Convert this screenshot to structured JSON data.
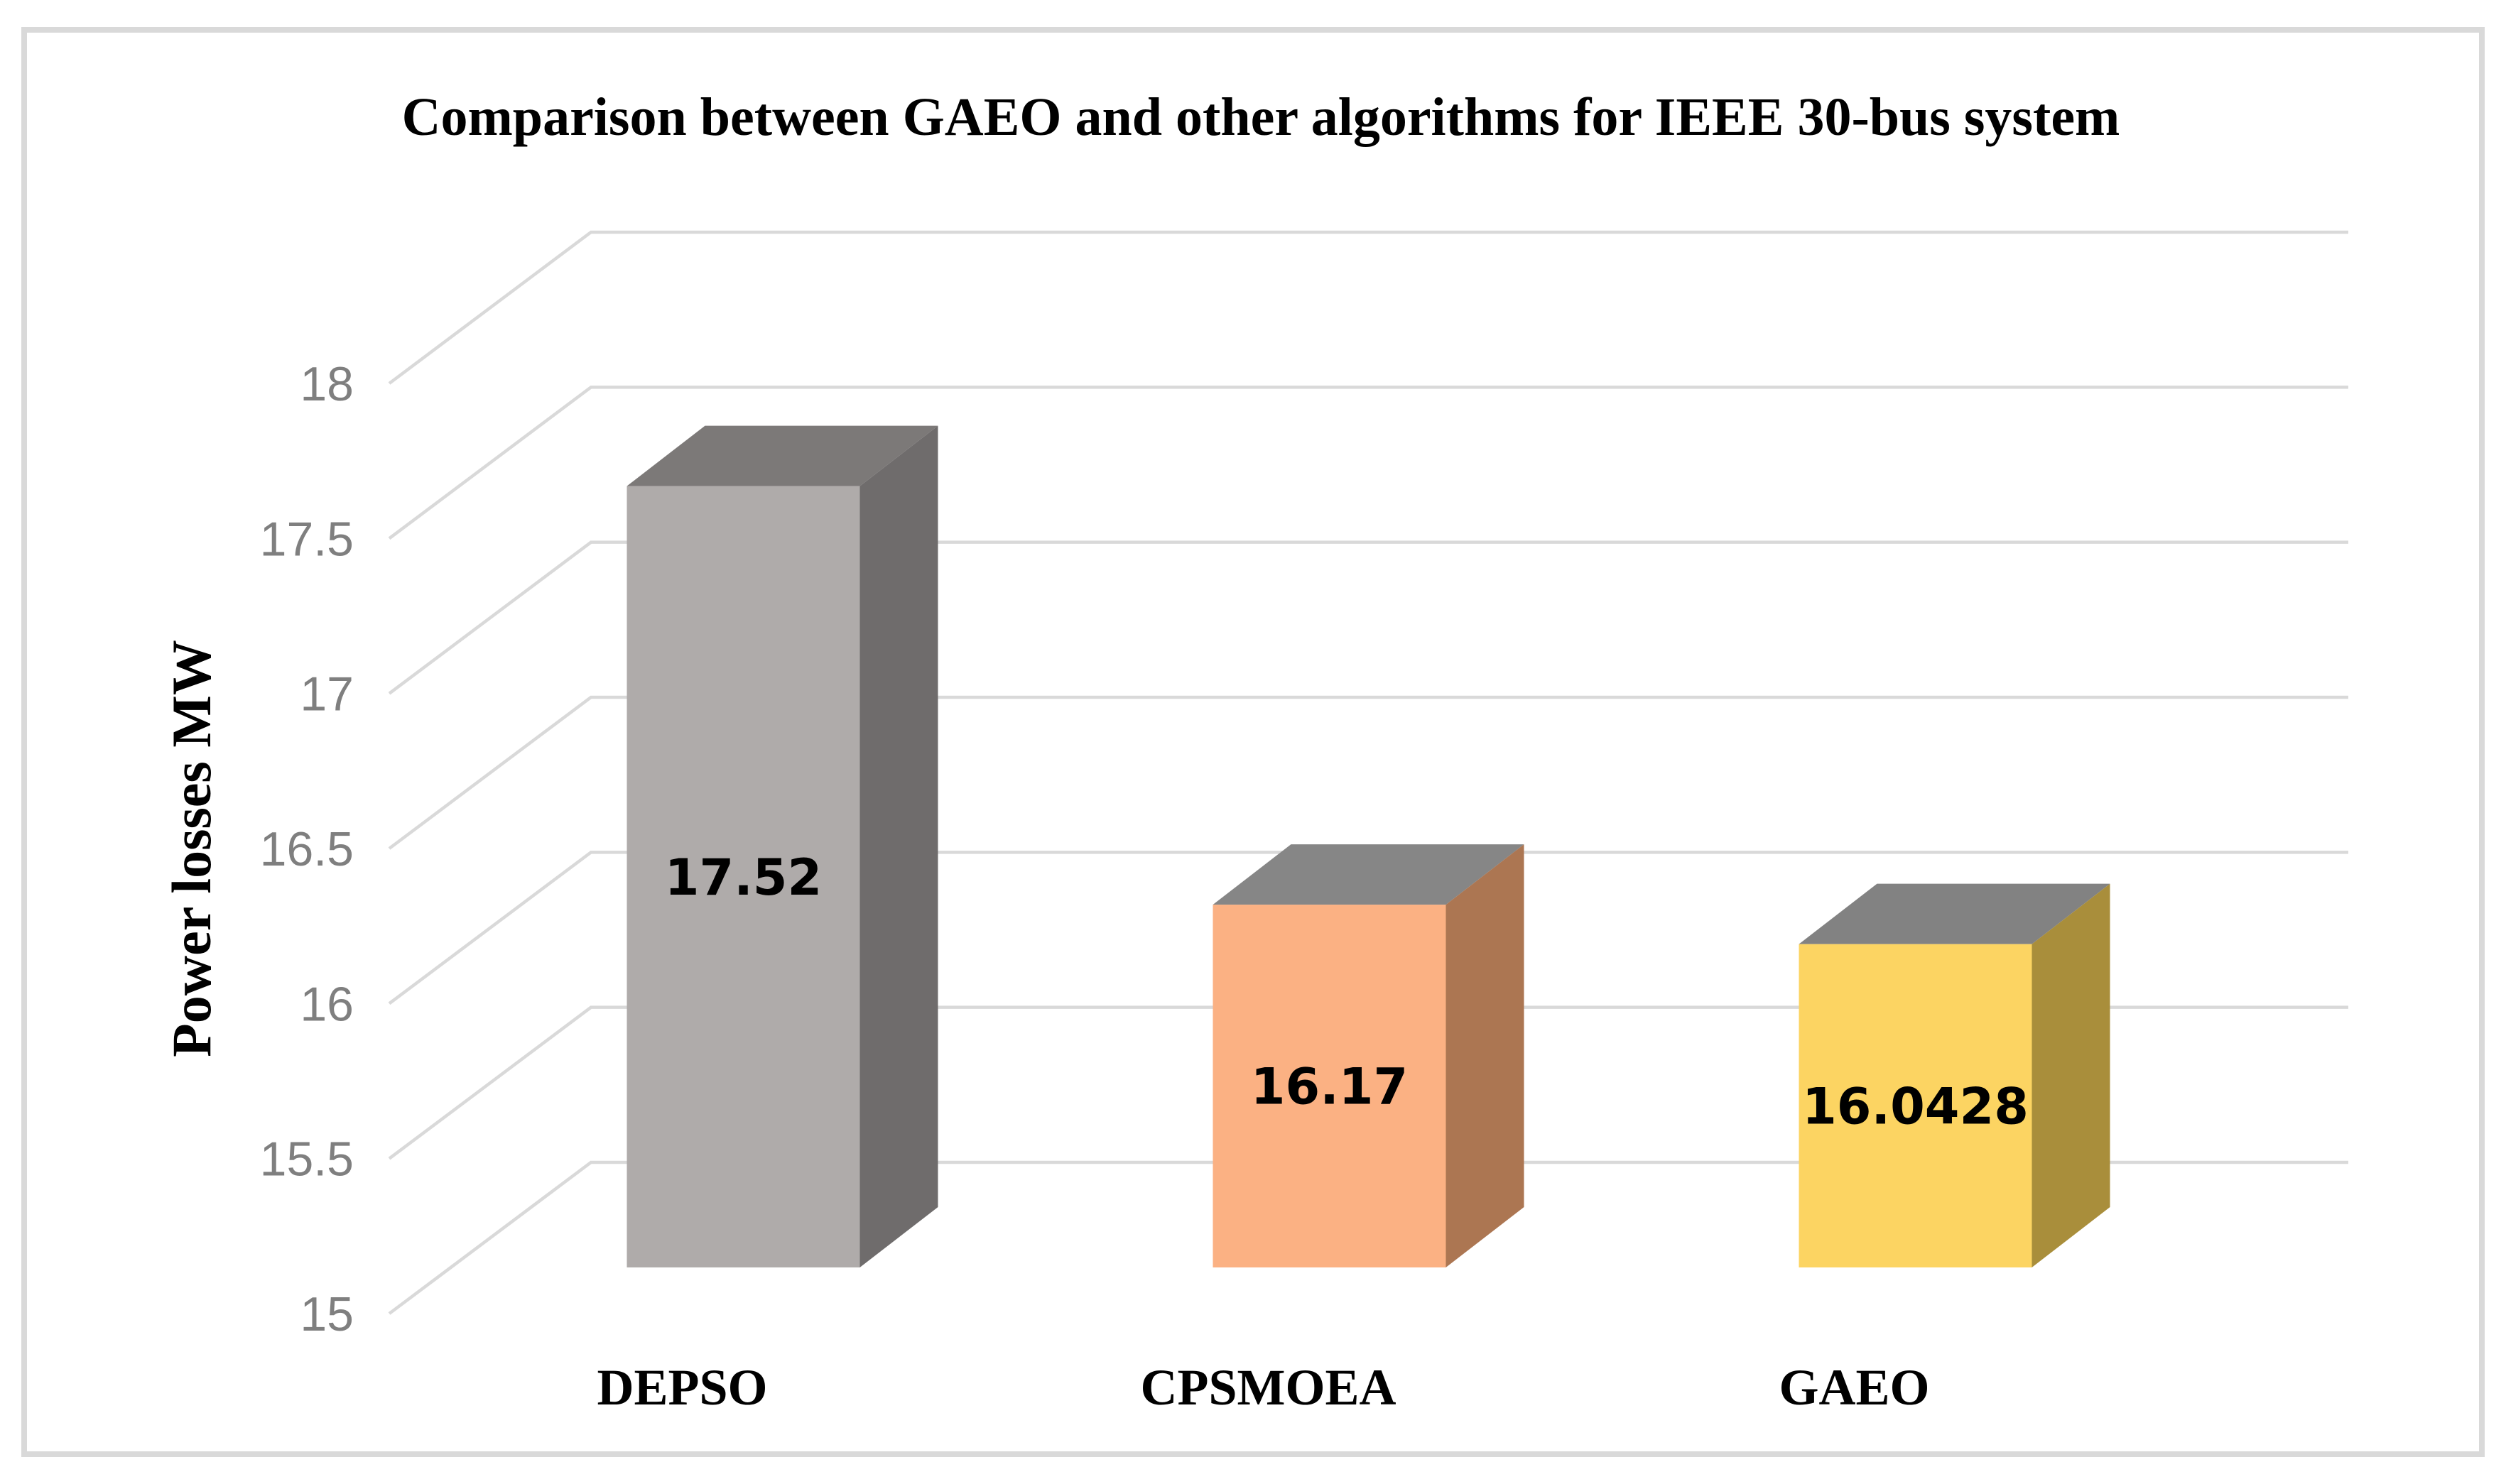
{
  "frame": {
    "background_color": "#FFFFFF",
    "border_color": "#D9D9D9"
  },
  "chart_data": {
    "type": "bar",
    "projection": "3d",
    "title": "Comparison between GAEO and other algorithms for IEEE 30-bus system",
    "xlabel": "",
    "ylabel": "Power losses MW",
    "categories": [
      "DEPSO",
      "CPSMOEA",
      "GAEO"
    ],
    "values": [
      17.52,
      16.17,
      16.0428
    ],
    "value_labels": [
      "17.52",
      "16.17",
      "16.0428"
    ],
    "ylim": [
      15,
      18
    ],
    "ytick_step": 0.5,
    "yticks": [
      15,
      15.5,
      16,
      16.5,
      17,
      17.5,
      18
    ],
    "ytick_labels": [
      "15",
      "15.5",
      "16",
      "16.5",
      "17",
      "17.5",
      "18"
    ],
    "grid": true,
    "legend_position": "none",
    "gridline_color": "#D9D9D9",
    "tick_label_color": "#7F7F7F",
    "value_label_color": "#000000",
    "series_colors": [
      {
        "front": "#AFABAA",
        "side": "#6F6C6C",
        "top": "#7C7978"
      },
      {
        "front": "#FBB183",
        "side": "#AC7652",
        "top": "#868686"
      },
      {
        "front": "#FCD462",
        "side": "#A98E3B",
        "top": "#828282"
      }
    ]
  }
}
